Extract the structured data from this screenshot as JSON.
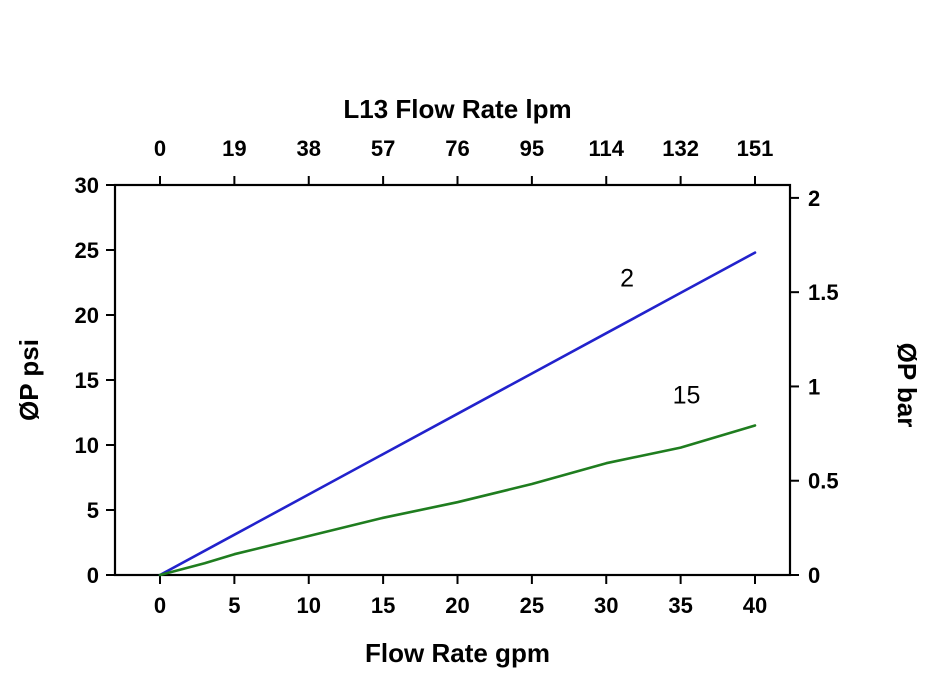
{
  "chart_data": {
    "type": "line",
    "background": "#ffffff",
    "grid": false,
    "top_axis": {
      "title": "L13  Flow Rate lpm",
      "tick_labels": [
        "0",
        "19",
        "38",
        "57",
        "76",
        "95",
        "114",
        "132",
        "151"
      ],
      "tick_positions_gpm": [
        0,
        5,
        10,
        15,
        20,
        25,
        30,
        35,
        40
      ]
    },
    "bottom_axis": {
      "title": "Flow Rate gpm",
      "ticks": [
        0,
        5,
        10,
        15,
        20,
        25,
        30,
        35,
        40
      ],
      "range_gpm": [
        -3.0,
        42.4
      ]
    },
    "left_axis": {
      "title": "ØP psi",
      "ticks": [
        0,
        5,
        10,
        15,
        20,
        25,
        30
      ],
      "range_psi": [
        0,
        30
      ]
    },
    "right_axis": {
      "title": "ØP bar",
      "ticks": [
        0,
        0.5,
        1,
        1.5,
        2
      ],
      "tick_labels": [
        "0",
        "0.5",
        "1",
        "1.5",
        "2"
      ],
      "psi_per_bar": 14.5038
    },
    "series": [
      {
        "name": "2",
        "color": "#2222cc",
        "points": [
          [
            0,
            0
          ],
          [
            5,
            3.1
          ],
          [
            10,
            6.2
          ],
          [
            15,
            9.3
          ],
          [
            20,
            12.4
          ],
          [
            25,
            15.5
          ],
          [
            30,
            18.6
          ],
          [
            35,
            21.7
          ],
          [
            40,
            24.8
          ]
        ],
        "label": "2",
        "label_pos_data": [
          31.4,
          22.2
        ]
      },
      {
        "name": "15",
        "color": "#1f7d1f",
        "points": [
          [
            0,
            0
          ],
          [
            3,
            0.9
          ],
          [
            5,
            1.6
          ],
          [
            10,
            3.0
          ],
          [
            15,
            4.4
          ],
          [
            20,
            5.6
          ],
          [
            25,
            7.0
          ],
          [
            30,
            8.6
          ],
          [
            35,
            9.8
          ],
          [
            40,
            11.5
          ]
        ],
        "label": "15",
        "label_pos_data": [
          35.4,
          13.2
        ]
      }
    ]
  }
}
